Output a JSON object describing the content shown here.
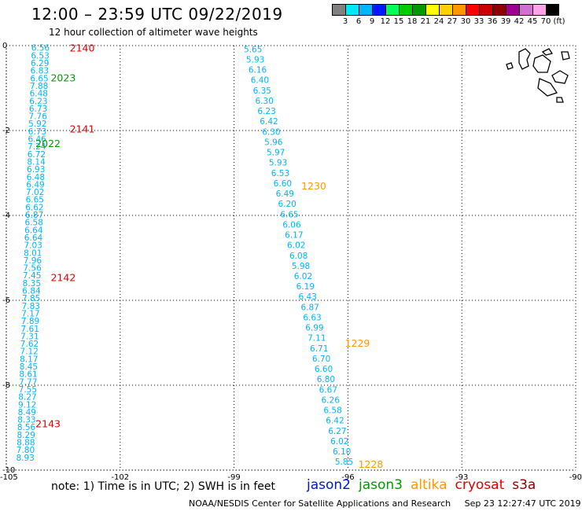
{
  "header": {
    "title": "12:00 – 23:59 UTC 09/22/2019",
    "subtitle": "12 hour collection of altimeter wave heights"
  },
  "legend": {
    "colors": [
      "#808080",
      "#00e8f8",
      "#00b4ff",
      "#0018ff",
      "#00ff5a",
      "#00cc00",
      "#009900",
      "#ffff00",
      "#ffd000",
      "#ff9800",
      "#ff0000",
      "#cc0000",
      "#8c0000",
      "#9c0090",
      "#d070d0",
      "#ffa4e8",
      "#000000"
    ],
    "ticks": [
      "3",
      "6",
      "9",
      "12",
      "15",
      "18",
      "21",
      "24",
      "27",
      "30",
      "33",
      "36",
      "39",
      "42",
      "45",
      "70",
      "(ft)"
    ]
  },
  "footer": {
    "note": "note:  1) Time is in UTC;  2) SWH is in feet",
    "credit": "NOAA/NESDIS Center for Satellite Applications and Research",
    "timestamp": "Sep 23 12:27:47 UTC 2019"
  },
  "satellites": [
    {
      "name": "jason2",
      "color": "#0018c8"
    },
    {
      "name": "jason3",
      "color": "#009900"
    },
    {
      "name": "altika",
      "color": "#ff9800"
    },
    {
      "name": "cryosat",
      "color": "#e00000"
    },
    {
      "name": "s3a",
      "color": "#8c0000"
    }
  ],
  "chart_data": {
    "type": "scatter",
    "title": "12 hour collection of altimeter wave heights",
    "xlim": [
      -105,
      -90
    ],
    "ylim": [
      -10,
      0
    ],
    "x_ticks": [
      "-105",
      "-102",
      "-99",
      "-96",
      "-93",
      "-90"
    ],
    "y_ticks": [
      "0",
      "-2",
      "-4",
      "-6",
      "-8",
      "-10"
    ],
    "grid": true,
    "tracks": [
      {
        "name": "track-west",
        "lon_start": -104.1,
        "lat_start": -0.05,
        "lon_end": -104.5,
        "lat_end": -9.7,
        "color": "#00b4ff",
        "values": [
          "6.56",
          "6.53",
          "6.29",
          "6.83",
          "6.65",
          "7.88",
          "6.48",
          "6.23",
          "6.73",
          "7.76",
          "5.92",
          "6.73",
          "6.46",
          "7.24",
          "6.72",
          "8.14",
          "6.93",
          "6.48",
          "6.49",
          "7.02",
          "6.65",
          "6.62",
          "6.87",
          "6.58",
          "6.64",
          "6.64",
          "7.03",
          "8.01",
          "7.96",
          "7.56",
          "7.45",
          "8.35",
          "6.84",
          "7.85",
          "7.83",
          "7.17",
          "7.89",
          "7.61",
          "7.31",
          "7.62",
          "7.12",
          "8.17",
          "8.45",
          "8.61",
          "7.77",
          "7.55",
          "8.27",
          "9.12",
          "8.49",
          "8.33",
          "8.56",
          "8.29",
          "8.88",
          "7.80",
          "8.93"
        ]
      },
      {
        "name": "track-east",
        "lon_start": -98.5,
        "lat_start": -0.08,
        "lon_end": -96.1,
        "lat_end": -9.8,
        "color": "#00b4ff",
        "values": [
          "5.65",
          "5.93",
          "6.16",
          "6.40",
          "6.35",
          "6.30",
          "6.23",
          "6.42",
          "6.30",
          "5.96",
          "5.97",
          "5.93",
          "6.53",
          "6.60",
          "6.49",
          "6.20",
          "6.65",
          "6.06",
          "6.17",
          "6.02",
          "6.08",
          "5.98",
          "6.02",
          "6.19",
          "6.43",
          "6.87",
          "6.63",
          "6.99",
          "7.11",
          "6.71",
          "6.70",
          "6.60",
          "6.80",
          "6.67",
          "6.26",
          "6.58",
          "6.42",
          "6.27",
          "6.02",
          "6.10",
          "5.85"
        ]
      }
    ],
    "time_labels": [
      {
        "text": "2140",
        "satellite": "cryosat",
        "lon": -103.0,
        "lat": -0.05
      },
      {
        "text": "2023",
        "satellite": "jason3",
        "lon": -103.5,
        "lat": -0.75
      },
      {
        "text": "2141",
        "satellite": "cryosat",
        "lon": -103.0,
        "lat": -1.95
      },
      {
        "text": "2022",
        "satellite": "jason3",
        "lon": -103.9,
        "lat": -2.3
      },
      {
        "text": "1230",
        "satellite": "altika",
        "lon": -96.9,
        "lat": -3.3
      },
      {
        "text": "2142",
        "satellite": "cryosat",
        "lon": -103.5,
        "lat": -5.45
      },
      {
        "text": "1229",
        "satellite": "altika",
        "lon": -95.75,
        "lat": -7.0
      },
      {
        "text": "2143",
        "satellite": "cryosat",
        "lon": -103.9,
        "lat": -8.9
      },
      {
        "text": "1228",
        "satellite": "altika",
        "lon": -95.4,
        "lat": -9.85
      }
    ]
  }
}
